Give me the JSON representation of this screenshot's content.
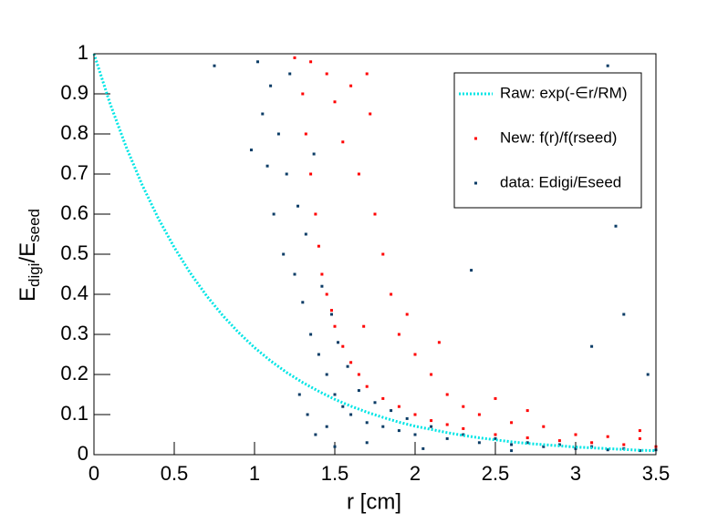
{
  "chart_data": {
    "type": "scatter",
    "xlabel": "r   [cm]",
    "ylabel": [
      "E",
      "digi",
      "/E",
      "seed"
    ],
    "xlim": [
      0,
      3.5
    ],
    "ylim": [
      0,
      1
    ],
    "xticks": [
      0,
      0.5,
      1,
      1.5,
      2,
      2.5,
      3,
      3.5
    ],
    "yticks": [
      0,
      0.1,
      0.2,
      0.3,
      0.4,
      0.5,
      0.6,
      0.7,
      0.8,
      0.9,
      1
    ],
    "legend": "upper right",
    "series": [
      {
        "name": "Raw: exp(-∈r/RM)",
        "color": "#00e5e5",
        "mode": "line",
        "x": [
          0,
          0.1,
          0.2,
          0.3,
          0.4,
          0.5,
          0.6,
          0.7,
          0.8,
          0.9,
          1,
          1.1,
          1.2,
          1.3,
          1.4,
          1.5,
          1.6,
          1.7,
          1.8,
          1.9,
          2,
          2.1,
          2.2,
          2.3,
          2.4,
          2.5,
          2.6,
          2.7,
          2.8,
          2.9,
          3,
          3.1,
          3.2,
          3.3,
          3.4,
          3.5
        ],
        "values": [
          1,
          0.876,
          0.768,
          0.673,
          0.59,
          0.517,
          0.453,
          0.397,
          0.348,
          0.305,
          0.267,
          0.234,
          0.205,
          0.18,
          0.158,
          0.138,
          0.121,
          0.106,
          0.093,
          0.081,
          0.071,
          0.063,
          0.055,
          0.048,
          0.042,
          0.037,
          0.032,
          0.028,
          0.025,
          0.022,
          0.019,
          0.017,
          0.015,
          0.013,
          0.011,
          0.01
        ]
      },
      {
        "name": "New: f(r)/f(rseed)",
        "color": "#ff0000",
        "mode": "points",
        "x": [
          1.25,
          1.3,
          1.32,
          1.35,
          1.38,
          1.4,
          1.42,
          1.45,
          1.48,
          1.5,
          1.55,
          1.6,
          1.65,
          1.7,
          1.8,
          1.9,
          2.0,
          2.1,
          2.2,
          2.3,
          2.5,
          2.7,
          2.9,
          3.1,
          3.3,
          3.5,
          1.45,
          1.5,
          1.55,
          1.6,
          1.65,
          1.7,
          1.75,
          1.8,
          1.85,
          1.9,
          1.95,
          2.0,
          2.1,
          2.2,
          2.3,
          2.4,
          2.6,
          2.8,
          3.0,
          3.2,
          3.4,
          1.35,
          1.72,
          1.68,
          2.15,
          2.5,
          2.7,
          3.4
        ],
        "values": [
          0.99,
          0.9,
          0.8,
          0.7,
          0.6,
          0.52,
          0.45,
          0.4,
          0.36,
          0.32,
          0.27,
          0.23,
          0.2,
          0.17,
          0.14,
          0.12,
          0.1,
          0.085,
          0.075,
          0.065,
          0.05,
          0.042,
          0.035,
          0.03,
          0.025,
          0.02,
          0.95,
          0.88,
          0.78,
          0.92,
          0.7,
          0.95,
          0.6,
          0.5,
          0.4,
          0.3,
          0.35,
          0.25,
          0.2,
          0.15,
          0.12,
          0.1,
          0.08,
          0.07,
          0.05,
          0.045,
          0.04,
          0.98,
          0.85,
          0.32,
          0.28,
          0.14,
          0.11,
          0.06
        ]
      },
      {
        "name": "data: Edigi/Eseed",
        "color": "#0b3c66",
        "mode": "points",
        "x": [
          1.02,
          1.05,
          1.08,
          1.1,
          1.12,
          1.15,
          1.18,
          1.2,
          1.22,
          1.25,
          1.27,
          1.3,
          1.32,
          1.35,
          1.37,
          1.4,
          1.42,
          1.45,
          1.48,
          1.5,
          1.52,
          1.55,
          1.58,
          1.6,
          1.65,
          1.7,
          1.75,
          1.8,
          1.85,
          1.9,
          1.95,
          2.0,
          2.1,
          2.2,
          2.3,
          2.4,
          2.5,
          2.6,
          2.7,
          2.8,
          2.9,
          3.0,
          3.1,
          3.2,
          3.3,
          3.4,
          3.5,
          0.75,
          0.98,
          2.35,
          3.1,
          3.3,
          3.45,
          3.2,
          1.38,
          1.45,
          1.5,
          1.7,
          2.05,
          2.6,
          1.28,
          1.33,
          3.25
        ],
        "values": [
          0.98,
          0.85,
          0.72,
          0.92,
          0.6,
          0.8,
          0.5,
          0.7,
          0.95,
          0.45,
          0.62,
          0.38,
          0.55,
          0.3,
          0.75,
          0.25,
          0.42,
          0.2,
          0.35,
          0.15,
          0.28,
          0.12,
          0.22,
          0.1,
          0.16,
          0.08,
          0.13,
          0.07,
          0.11,
          0.06,
          0.09,
          0.05,
          0.07,
          0.04,
          0.05,
          0.03,
          0.04,
          0.025,
          0.03,
          0.02,
          0.025,
          0.015,
          0.02,
          0.012,
          0.015,
          0.01,
          0.012,
          0.97,
          0.76,
          0.46,
          0.27,
          0.35,
          0.2,
          0.97,
          0.05,
          0.07,
          0.02,
          0.03,
          0.015,
          0.01,
          0.15,
          0.1,
          0.57
        ]
      }
    ]
  }
}
